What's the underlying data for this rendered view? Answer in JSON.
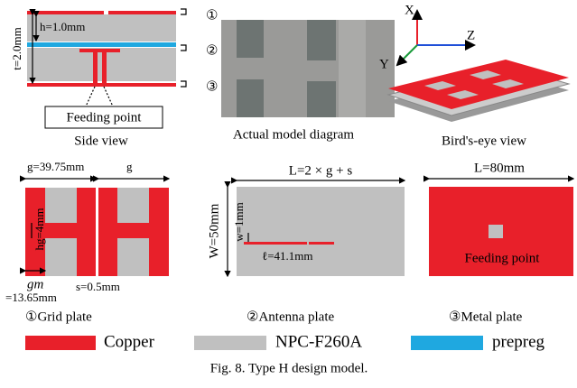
{
  "side_view": {
    "markers": [
      "①",
      "②",
      "③"
    ],
    "h_label": "h=1.0mm",
    "t_label": "t=2.0mm",
    "feed_label": "Feeding point",
    "caption": "Side view"
  },
  "photo": {
    "caption": "Actual model diagram"
  },
  "birds_eye": {
    "axes": [
      "X",
      "Y",
      "Z"
    ],
    "caption": "Bird's-eye view"
  },
  "grid_plate": {
    "g_full": "g=39.75mm",
    "g": "g",
    "hg": "hg=4mm",
    "gm": "gm",
    "gm_value": "=13.65mm",
    "s": "s=0.5mm",
    "caption": "①Grid plate"
  },
  "antenna_plate": {
    "L": "L=2 × g + s",
    "W": "W=50mm",
    "w": "w=1mm",
    "l": "ℓ=41.1mm",
    "caption": "②Antenna plate"
  },
  "metal_plate": {
    "L": "L=80mm",
    "feed": "Feeding point",
    "caption": "③Metal plate"
  },
  "legend": [
    "Copper",
    "NPC-F260A",
    "prepreg"
  ],
  "caption": "Fig. 8.  Type H design model."
}
